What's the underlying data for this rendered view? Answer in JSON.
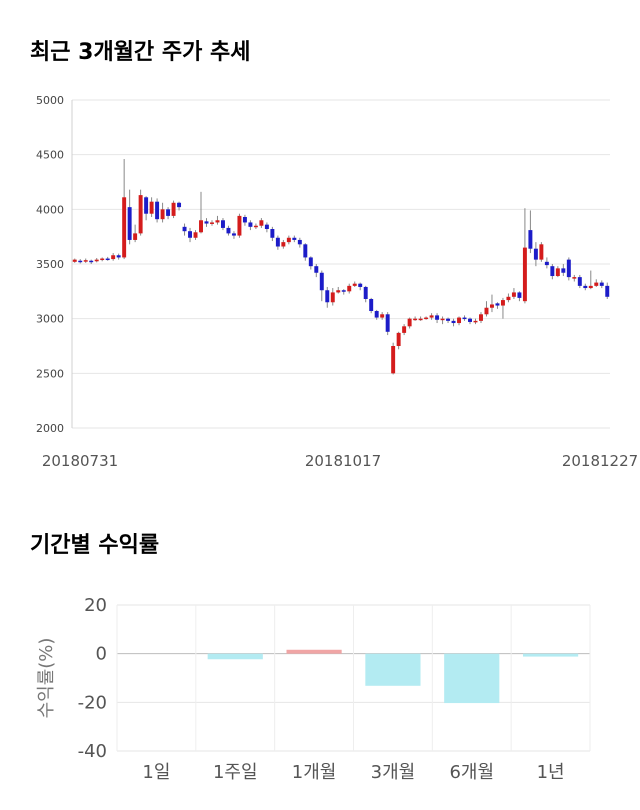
{
  "titles": {
    "price_trend": "최근 3개월간 주가 추세",
    "returns": "기간별 수익률"
  },
  "chart_data": [
    {
      "type": "candlestick",
      "y_ticks": [
        2000,
        2500,
        3000,
        3500,
        4000,
        4500,
        5000
      ],
      "ylim": [
        2000,
        5000
      ],
      "x_tick_labels": [
        "20180731",
        "20181017",
        "20181227"
      ],
      "up_color": "#d41c1c",
      "down_color": "#1c1cc8",
      "candles": [
        [
          3520,
          3540,
          3510,
          3550
        ],
        [
          3530,
          3525,
          3505,
          3545
        ],
        [
          3525,
          3535,
          3510,
          3550
        ],
        [
          3530,
          3520,
          3500,
          3540
        ],
        [
          3525,
          3540,
          3515,
          3555
        ],
        [
          3540,
          3550,
          3525,
          3560
        ],
        [
          3550,
          3545,
          3530,
          3565
        ],
        [
          3545,
          3580,
          3530,
          3600
        ],
        [
          3580,
          3560,
          3540,
          3595
        ],
        [
          3560,
          4110,
          3545,
          4460
        ],
        [
          4020,
          3720,
          3680,
          4180
        ],
        [
          3720,
          3780,
          3700,
          3860
        ],
        [
          3780,
          4130,
          3760,
          4180
        ],
        [
          4110,
          3960,
          3900,
          4120
        ],
        [
          3960,
          4070,
          3930,
          4110
        ],
        [
          4070,
          3910,
          3880,
          4100
        ],
        [
          3910,
          4000,
          3880,
          4060
        ],
        [
          4000,
          3940,
          3910,
          4020
        ],
        [
          3940,
          4060,
          3920,
          4080
        ],
        [
          4060,
          4020,
          3990,
          4070
        ],
        [
          3840,
          3800,
          3760,
          3870
        ],
        [
          3800,
          3740,
          3700,
          3830
        ],
        [
          3740,
          3790,
          3720,
          3810
        ],
        [
          3790,
          3900,
          3780,
          4160
        ],
        [
          3890,
          3870,
          3840,
          3920
        ],
        [
          3870,
          3880,
          3850,
          3900
        ],
        [
          3880,
          3900,
          3860,
          3940
        ],
        [
          3900,
          3830,
          3810,
          3920
        ],
        [
          3830,
          3780,
          3760,
          3850
        ],
        [
          3780,
          3760,
          3730,
          3800
        ],
        [
          3760,
          3940,
          3740,
          3960
        ],
        [
          3930,
          3880,
          3850,
          3950
        ],
        [
          3880,
          3840,
          3810,
          3900
        ],
        [
          3840,
          3850,
          3820,
          3870
        ],
        [
          3850,
          3900,
          3830,
          3920
        ],
        [
          3860,
          3820,
          3790,
          3880
        ],
        [
          3820,
          3740,
          3710,
          3840
        ],
        [
          3740,
          3660,
          3630,
          3760
        ],
        [
          3660,
          3700,
          3640,
          3720
        ],
        [
          3700,
          3740,
          3680,
          3760
        ],
        [
          3740,
          3720,
          3700,
          3760
        ],
        [
          3720,
          3680,
          3650,
          3740
        ],
        [
          3680,
          3560,
          3530,
          3690
        ],
        [
          3560,
          3480,
          3450,
          3570
        ],
        [
          3480,
          3420,
          3380,
          3500
        ],
        [
          3420,
          3260,
          3160,
          3440
        ],
        [
          3260,
          3150,
          3100,
          3290
        ],
        [
          3150,
          3240,
          3120,
          3280
        ],
        [
          3240,
          3260,
          3230,
          3290
        ],
        [
          3260,
          3250,
          3220,
          3270
        ],
        [
          3250,
          3300,
          3230,
          3320
        ],
        [
          3300,
          3320,
          3290,
          3340
        ],
        [
          3320,
          3290,
          3260,
          3330
        ],
        [
          3290,
          3180,
          3150,
          3300
        ],
        [
          3180,
          3070,
          3050,
          3190
        ],
        [
          3070,
          3010,
          2990,
          3080
        ],
        [
          3010,
          3040,
          2990,
          3060
        ],
        [
          3040,
          2880,
          2850,
          3060
        ],
        [
          2500,
          2750,
          2490,
          2780
        ],
        [
          2750,
          2870,
          2720,
          2880
        ],
        [
          2870,
          2930,
          2850,
          2950
        ],
        [
          2930,
          3000,
          2910,
          3010
        ],
        [
          3000,
          3000,
          2980,
          3020
        ],
        [
          3000,
          3000,
          2980,
          3020
        ],
        [
          3000,
          3010,
          2990,
          3020
        ],
        [
          3010,
          3030,
          2990,
          3050
        ],
        [
          3030,
          2990,
          2960,
          3050
        ],
        [
          2990,
          3000,
          2950,
          3020
        ],
        [
          3000,
          2980,
          2960,
          3010
        ],
        [
          2980,
          2960,
          2930,
          3000
        ],
        [
          2960,
          3010,
          2940,
          3020
        ],
        [
          3010,
          3000,
          2980,
          3030
        ],
        [
          3000,
          2970,
          2950,
          3010
        ],
        [
          2970,
          2980,
          2950,
          3000
        ],
        [
          2980,
          3040,
          2960,
          3060
        ],
        [
          3040,
          3100,
          3020,
          3160
        ],
        [
          3100,
          3130,
          3060,
          3220
        ],
        [
          3140,
          3120,
          3090,
          3150
        ],
        [
          3120,
          3170,
          3000,
          3190
        ],
        [
          3170,
          3200,
          3150,
          3230
        ],
        [
          3200,
          3240,
          3180,
          3280
        ],
        [
          3240,
          3190,
          3160,
          3250
        ],
        [
          3160,
          3650,
          3140,
          4010
        ],
        [
          3810,
          3640,
          3600,
          3990
        ],
        [
          3640,
          3540,
          3480,
          3700
        ],
        [
          3540,
          3680,
          3520,
          3700
        ],
        [
          3520,
          3490,
          3460,
          3560
        ],
        [
          3480,
          3390,
          3360,
          3500
        ],
        [
          3390,
          3460,
          3380,
          3480
        ],
        [
          3460,
          3420,
          3390,
          3500
        ],
        [
          3540,
          3380,
          3350,
          3560
        ],
        [
          3380,
          3380,
          3340,
          3400
        ],
        [
          3380,
          3300,
          3280,
          3400
        ],
        [
          3300,
          3280,
          3260,
          3320
        ],
        [
          3280,
          3300,
          3270,
          3440
        ],
        [
          3300,
          3330,
          3290,
          3360
        ],
        [
          3330,
          3300,
          3280,
          3350
        ],
        [
          3300,
          3200,
          3180,
          3330
        ]
      ]
    },
    {
      "type": "bar",
      "categories": [
        "1일",
        "1주일",
        "1개월",
        "3개월",
        "6개월",
        "1년"
      ],
      "values": [
        0.0,
        -2.3,
        1.6,
        -13.2,
        -20.3,
        -1.2
      ],
      "ylabel": "수익률(%)",
      "y_ticks": [
        20,
        0,
        -20,
        -40
      ],
      "ylim": [
        -40,
        20
      ],
      "positive_color": "#f0a5a5",
      "negative_color": "#b3ebf2"
    }
  ]
}
